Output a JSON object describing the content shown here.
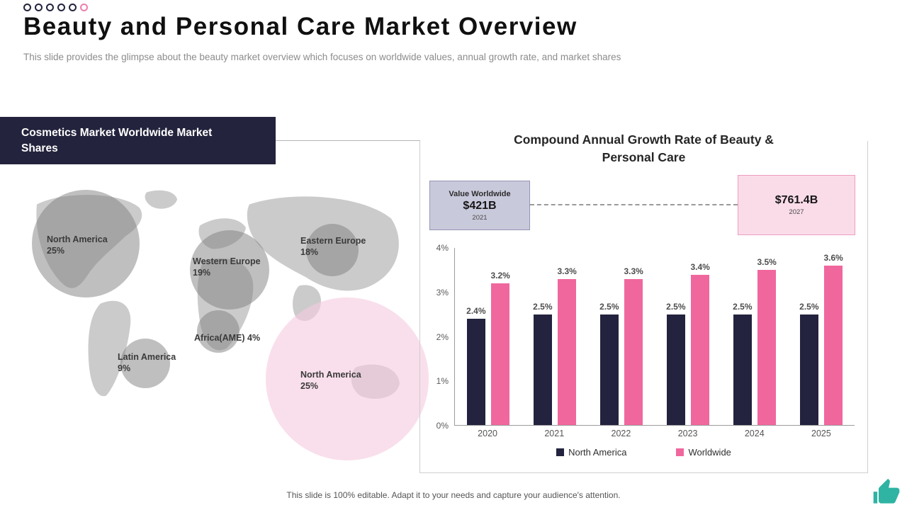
{
  "header": {
    "title": "Beauty and Personal Care Market Overview",
    "subtitle": "This slide provides the glimpse about the beauty market overview which focuses on worldwide values, annual growth rate, and market shares"
  },
  "map_section": {
    "header_label": "Cosmetics Market Worldwide Market Shares",
    "bubbles": [
      {
        "label": "North America",
        "value": "25%"
      },
      {
        "label": "Western Europe",
        "value": "19%"
      },
      {
        "label": "Eastern Europe",
        "value": "18%"
      },
      {
        "label": "Africa(AME)",
        "value": "4%"
      },
      {
        "label": "Latin America",
        "value": "9%"
      },
      {
        "label": "North America",
        "value": "25%"
      }
    ]
  },
  "growth_section": {
    "title_line1": "Compound Annual Growth Rate of Beauty &",
    "title_line2": "Personal Care",
    "callout_start": {
      "label": "Value Worldwide",
      "value": "$421B",
      "year": "2021"
    },
    "callout_end": {
      "value": "$761.4B",
      "year": "2027"
    }
  },
  "chart_data": {
    "type": "bar",
    "title": "Compound Annual Growth Rate of Beauty & Personal Care",
    "categories": [
      "2020",
      "2021",
      "2022",
      "2023",
      "2024",
      "2025"
    ],
    "series": [
      {
        "name": "North America",
        "color": "#23233f",
        "values": [
          2.4,
          2.5,
          2.5,
          2.5,
          2.5,
          2.5
        ]
      },
      {
        "name": "Worldwide",
        "color": "#f0679e",
        "values": [
          3.2,
          3.3,
          3.3,
          3.4,
          3.5,
          3.6
        ]
      }
    ],
    "ylim": [
      0,
      4
    ],
    "yticks": [
      "4%",
      "3%",
      "2%",
      "1%",
      "0%"
    ],
    "ylabel": "",
    "xlabel": "",
    "grid": false,
    "legend_position": "bottom"
  },
  "footer": {
    "text": "This slide is 100% editable. Adapt it to your needs and capture your audience's attention."
  },
  "colors": {
    "accent_dark": "#23233f",
    "accent_pink": "#f0679e",
    "callout_start_bg": "#c9c9dc",
    "callout_end_bg": "#fadce9",
    "thumb_teal": "#2fb3a3"
  }
}
